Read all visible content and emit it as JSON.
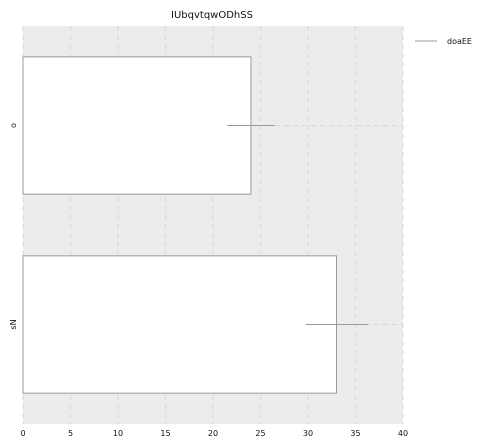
{
  "chart_data": {
    "type": "bar",
    "orientation": "horizontal",
    "title": "IUbqvtqwODhSS",
    "xlabel": "",
    "ylabel": "",
    "categories": [
      "o",
      "sN"
    ],
    "series": [
      {
        "name": "doaEE",
        "values": [
          24,
          33
        ],
        "error_low": [
          21.5,
          29.8
        ],
        "error_high": [
          26.5,
          36.3
        ]
      }
    ],
    "xlim": [
      0,
      40
    ],
    "xticks": [
      0,
      5,
      10,
      15,
      20,
      25,
      30,
      35,
      40
    ],
    "grid": true,
    "legend_position": "top-right",
    "colors": {
      "plot_background": "#ececec",
      "bar_fill": "#ffffff",
      "bar_edge": "#9a9a9a",
      "legend_line": "#999999"
    }
  }
}
